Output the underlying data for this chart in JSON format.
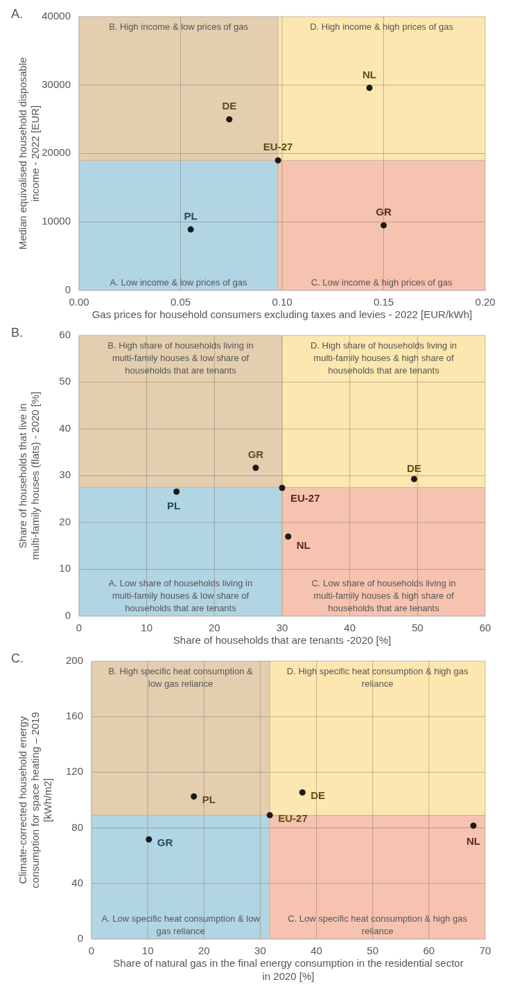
{
  "chart_data": [
    {
      "type": "scatter",
      "title": "A.",
      "xlabel": "Gas prices for household consumers excluding taxes and levies - 2022 [EUR/kWh]",
      "ylabel": "Median equivalised household disposable income - 2022 [EUR]",
      "xlim": [
        0,
        0.2
      ],
      "xticks": [
        {
          "value": 0,
          "label": "0.00"
        },
        {
          "value": 0.05,
          "label": "0.05"
        },
        {
          "value": 0.1,
          "label": "0.10"
        },
        {
          "value": 0.15,
          "label": "0.15"
        },
        {
          "value": 0.2,
          "label": "0.20"
        }
      ],
      "ylim": [
        0,
        40000
      ],
      "yticks": [
        0,
        10000,
        20000,
        30000,
        40000
      ],
      "grid": true,
      "legend": false,
      "marker": "circle",
      "ref_lines": [
        {
          "axis": "x",
          "value": 0.098
        },
        {
          "axis": "y",
          "value": 19000
        }
      ],
      "annotations": [
        "B. High income & low prices of gas",
        "D. High income & high prices of gas",
        "A. Low income & low prices of gas",
        "C. Low income & high prices of gas"
      ],
      "series": [
        {
          "name": "DE",
          "color": "#1a1a1a",
          "x": [
            0.074
          ],
          "values": [
            25000
          ]
        },
        {
          "name": "NL",
          "color": "#1a1a1a",
          "x": [
            0.143
          ],
          "values": [
            29600
          ]
        },
        {
          "name": "EU-27",
          "color": "#1a1a1a",
          "x": [
            0.098
          ],
          "values": [
            19000
          ]
        },
        {
          "name": "PL",
          "color": "#1a1a1a",
          "x": [
            0.055
          ],
          "values": [
            8900
          ]
        },
        {
          "name": "GR",
          "color": "#1a1a1a",
          "x": [
            0.15
          ],
          "values": [
            9500
          ]
        }
      ]
    },
    {
      "type": "scatter",
      "title": "B.",
      "xlabel": "Share of households that are tenants -2020 [%]",
      "ylabel": "Share of households that live in multi-family houses (flats) - 2020 [%]",
      "xlim": [
        0,
        60
      ],
      "xticks": [
        0,
        10,
        20,
        30,
        40,
        50,
        60
      ],
      "ylim": [
        0,
        60
      ],
      "yticks": [
        0,
        10,
        20,
        30,
        40,
        50,
        60
      ],
      "grid": true,
      "legend": false,
      "marker": "circle",
      "ref_lines": [
        {
          "axis": "x",
          "value": 30
        },
        {
          "axis": "y",
          "value": 27.5
        }
      ],
      "annotations": [
        "B. High share of households living in multi-family houses & low share of households that are tenants",
        "D. High share of households living in multi-family houses & high share of households that are tenants",
        "A. Low share of households living in multi-family houses & low share of households that are tenants",
        "C. Low share of households living in multi-family houses & high share of households that are tenants"
      ],
      "series": [
        {
          "name": "GR",
          "color": "#1a1a1a",
          "x": [
            26.1
          ],
          "values": [
            31.7
          ]
        },
        {
          "name": "DE",
          "color": "#1a1a1a",
          "x": [
            49.5
          ],
          "values": [
            29.3
          ]
        },
        {
          "name": "EU-27",
          "color": "#1a1a1a",
          "x": [
            30.0
          ],
          "values": [
            27.4
          ]
        },
        {
          "name": "PL",
          "color": "#1a1a1a",
          "x": [
            14.4
          ],
          "values": [
            26.6
          ]
        },
        {
          "name": "NL",
          "color": "#1a1a1a",
          "x": [
            30.9
          ],
          "values": [
            17.0
          ]
        }
      ]
    },
    {
      "type": "scatter",
      "title": "C.",
      "xlabel": "Share of natural gas in the final energy consumption in the residential sector in 2020 [%]",
      "ylabel": "Climate-corrected household energy consumption for space heating – 2019 [kWh/m2]",
      "xlim": [
        0,
        70
      ],
      "xticks": [
        0,
        10,
        20,
        30,
        40,
        50,
        60,
        70
      ],
      "ylim": [
        0,
        200
      ],
      "yticks": [
        0,
        40,
        80,
        120,
        160,
        200
      ],
      "grid": true,
      "legend": false,
      "marker": "circle",
      "ref_lines": [
        {
          "axis": "x",
          "value": 31.7
        },
        {
          "axis": "y",
          "value": 89
        }
      ],
      "annotations": [
        "B. High specific heat consumption & low gas reliance",
        "D. High specific heat consumption & high gas reliance",
        "A. Low specific heat consumption & low gas reliance",
        "C. Low specific heat consumption & high gas reliance"
      ],
      "series": [
        {
          "name": "PL",
          "color": "#1a1a1a",
          "x": [
            18.2
          ],
          "values": [
            102.6
          ]
        },
        {
          "name": "DE",
          "color": "#1a1a1a",
          "x": [
            37.5
          ],
          "values": [
            105.5
          ]
        },
        {
          "name": "EU-27",
          "color": "#1a1a1a",
          "x": [
            31.7
          ],
          "values": [
            89.1
          ]
        },
        {
          "name": "GR",
          "color": "#1a1a1a",
          "x": [
            10.2
          ],
          "values": [
            71.7
          ]
        },
        {
          "name": "NL",
          "color": "#1a1a1a",
          "x": [
            67.9
          ],
          "values": [
            81.6
          ]
        }
      ]
    }
  ]
}
